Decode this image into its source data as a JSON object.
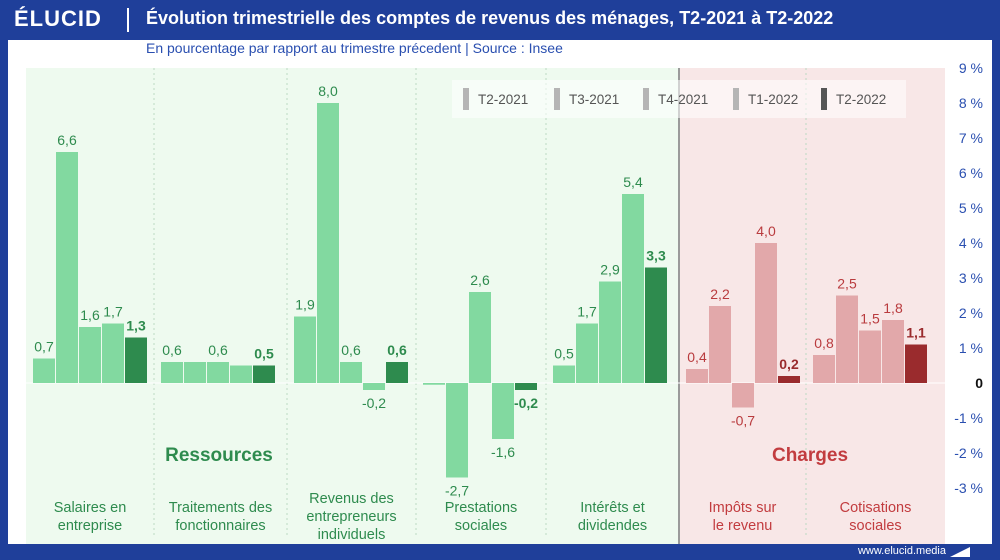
{
  "brand": {
    "name": "ÉLUCID"
  },
  "title": "Évolution trimestrielle des comptes de revenus des ménages, T2-2021 à T2-2022",
  "subtitle": "En pourcentage par rapport au trimestre précedent  |  Source : Insee",
  "footer": {
    "url": "www.elucid.media"
  },
  "colors": {
    "resources_bg": "#eefaef",
    "charges_bg": "#f8e7e7",
    "green_light": "#82d9a0",
    "green_dark": "#2e8b4e",
    "red_light": "#e2a8aa",
    "red_dark": "#9a2b2d",
    "label_green": "#2e8b4e",
    "label_red": "#b93b3e",
    "legend_bar": "#b5b5b5",
    "legend_bar_last": "#555555"
  },
  "chart_data": {
    "type": "bar",
    "series_names": [
      "T2-2021",
      "T3-2021",
      "T4-2021",
      "T1-2022",
      "T2-2022"
    ],
    "ylim": [
      -3,
      9
    ],
    "yticks": [
      {
        "value": 9,
        "label": "9 %"
      },
      {
        "value": 8,
        "label": "8 %"
      },
      {
        "value": 7,
        "label": "7 %"
      },
      {
        "value": 6,
        "label": "6 %"
      },
      {
        "value": 5,
        "label": "5 %"
      },
      {
        "value": 4,
        "label": "4 %"
      },
      {
        "value": 3,
        "label": "3 %"
      },
      {
        "value": 2,
        "label": "2 %"
      },
      {
        "value": 1,
        "label": "1 %"
      },
      {
        "value": 0,
        "label": "0"
      },
      {
        "value": -1,
        "label": "-1 %"
      },
      {
        "value": -2,
        "label": "-2 %"
      },
      {
        "value": -3,
        "label": "-3 %"
      }
    ],
    "sections": [
      {
        "name": "Ressources",
        "group": "resources"
      },
      {
        "name": "Charges",
        "group": "charges"
      }
    ],
    "categories": [
      {
        "label": [
          "Salaires en",
          "entreprise"
        ],
        "group": "resources",
        "values": [
          0.7,
          6.6,
          1.6,
          1.7,
          1.3
        ],
        "labels": [
          "0,7",
          "6,6",
          "1,6",
          "1,7",
          "1,3"
        ]
      },
      {
        "label": [
          "Traitements des",
          "fonctionnaires"
        ],
        "group": "resources",
        "values": [
          0.6,
          0.6,
          0.6,
          0.5,
          0.5
        ],
        "labels": [
          "0,6",
          "",
          "0,6",
          "",
          "0,5"
        ]
      },
      {
        "label": [
          "Revenus des",
          "entrepreneurs",
          "individuels"
        ],
        "group": "resources",
        "values": [
          1.9,
          8.0,
          0.6,
          -0.2,
          0.6
        ],
        "labels": [
          "1,9",
          "8,0",
          "0,6",
          "-0,2",
          "0,6"
        ]
      },
      {
        "label": [
          "Prestations",
          "sociales"
        ],
        "group": "resources",
        "values": [
          -0.05,
          -2.7,
          2.6,
          -1.6,
          -0.2
        ],
        "labels": [
          "",
          "-2,7",
          "2,6",
          "-1,6",
          "-0,2"
        ]
      },
      {
        "label": [
          "Intérêts et",
          "dividendes"
        ],
        "group": "resources",
        "values": [
          0.5,
          1.7,
          2.9,
          5.4,
          3.3
        ],
        "labels": [
          "0,5",
          "1,7",
          "2,9",
          "5,4",
          "3,3"
        ]
      },
      {
        "label": [
          "Impôts sur",
          "le revenu"
        ],
        "group": "charges",
        "values": [
          0.4,
          2.2,
          -0.7,
          4.0,
          0.2
        ],
        "labels": [
          "0,4",
          "2,2",
          "-0,7",
          "4,0",
          "0,2"
        ]
      },
      {
        "label": [
          "Cotisations",
          "sociales"
        ],
        "group": "charges",
        "values": [
          0.8,
          2.5,
          1.5,
          1.8,
          1.1
        ],
        "labels": [
          "0,8",
          "2,5",
          "1,5",
          "1,8",
          "1,1"
        ]
      }
    ]
  }
}
